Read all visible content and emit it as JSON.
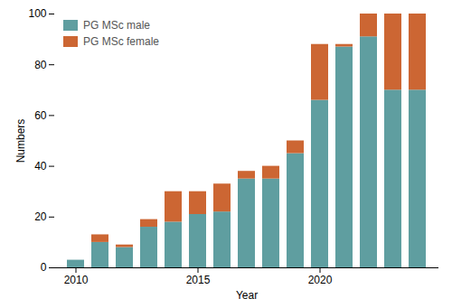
{
  "chart_data": {
    "type": "bar",
    "stacked": true,
    "xlabel": "Year",
    "ylabel": "Numbers",
    "x": [
      2010,
      2011,
      2012,
      2013,
      2014,
      2015,
      2016,
      2017,
      2018,
      2019,
      2020,
      2021,
      2022,
      2023,
      2024
    ],
    "series": [
      {
        "name": "PG MSc male",
        "color": "#5f9ea0",
        "values": [
          3,
          10,
          8,
          16,
          18,
          21,
          22,
          35,
          35,
          45,
          66,
          87,
          91,
          70,
          70
        ]
      },
      {
        "name": "PG MSc female",
        "color": "#cc6633",
        "values": [
          0,
          3,
          1,
          3,
          12,
          9,
          11,
          3,
          5,
          5,
          22,
          1,
          9,
          30,
          30
        ]
      }
    ],
    "xticks": [
      2010,
      2015,
      2020
    ],
    "ylim": [
      0,
      100
    ],
    "yticks": [
      0,
      20,
      40,
      60,
      80,
      100
    ],
    "grid": false,
    "legend": "upper left"
  }
}
